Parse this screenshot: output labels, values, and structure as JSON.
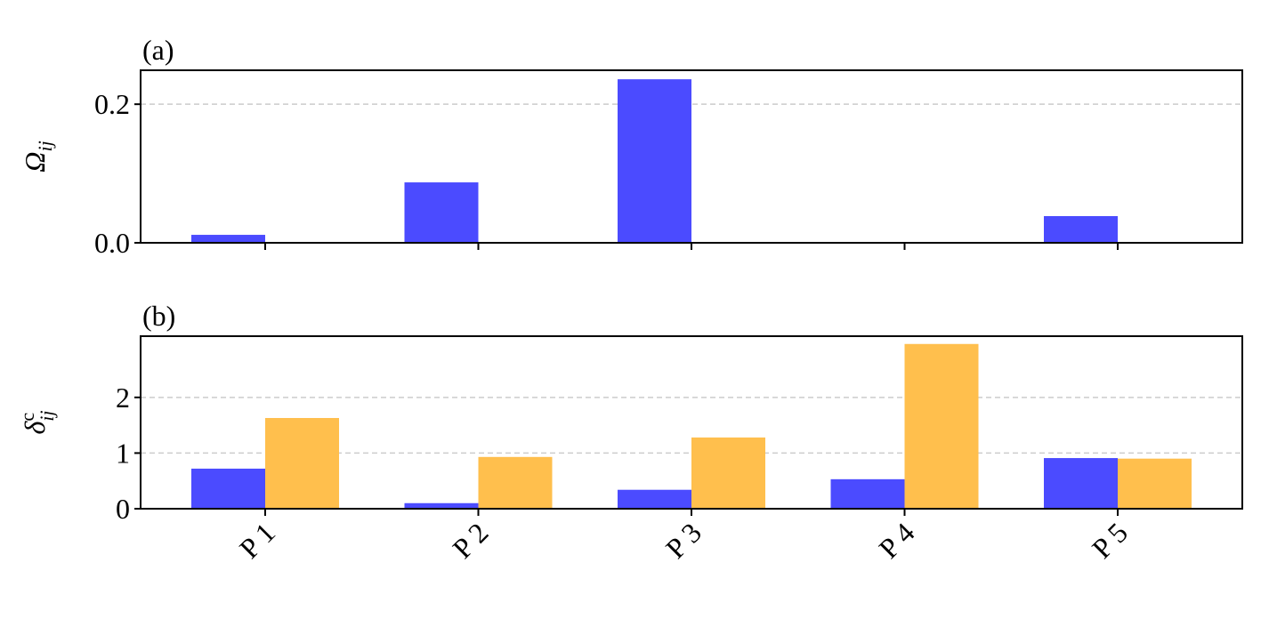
{
  "chart_data": [
    {
      "type": "bar",
      "title": "(a)",
      "ylabel": {
        "base": "Ω",
        "sub": "ij"
      },
      "series": [
        {
          "color": "#4b4bff",
          "values": [
            0.0115,
            0.0872,
            0.236,
            0,
            0.0385
          ]
        }
      ],
      "ylim": [
        0,
        0.249
      ],
      "yticks": [
        {
          "value": 0,
          "label": "0.0"
        },
        {
          "value": 0.2,
          "label": "0.2"
        }
      ],
      "grid": true
    },
    {
      "type": "bar",
      "title": "(b)",
      "ylabel": {
        "base": "δ",
        "sup": "c",
        "sub": "ij"
      },
      "categories": [
        "P 1",
        "P 2",
        "P 3",
        "P 4",
        "P 5"
      ],
      "series": [
        {
          "color": "#4b4bff",
          "values": [
            0.72,
            0.1,
            0.34,
            0.53,
            0.91
          ]
        },
        {
          "color": "#ffbf4d",
          "values": [
            1.63,
            0.93,
            1.28,
            2.96,
            0.9
          ]
        }
      ],
      "ylim": [
        0,
        3.1
      ],
      "yticks": [
        0,
        1,
        2
      ],
      "grid": true
    }
  ]
}
